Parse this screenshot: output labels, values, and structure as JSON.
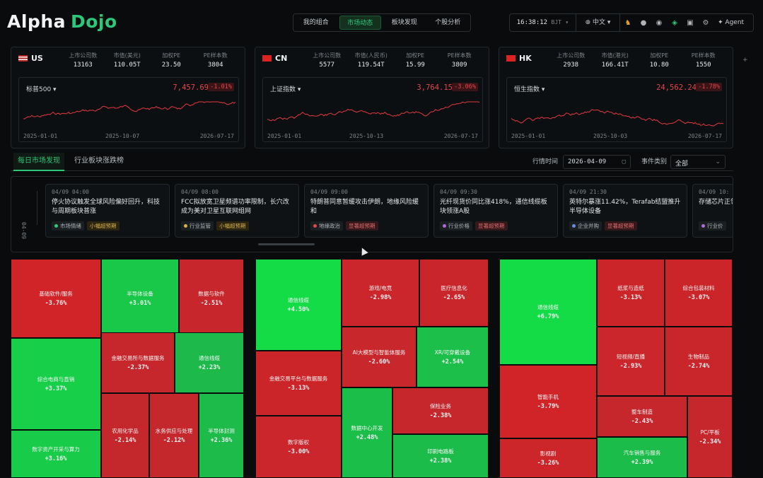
{
  "app": {
    "brand_a": "Alpha",
    "brand_b": "Dojo"
  },
  "nav": [
    {
      "label": "我的组合"
    },
    {
      "label": "市场动态",
      "active": true
    },
    {
      "label": "板块发现"
    },
    {
      "label": "个股分析"
    }
  ],
  "topright": {
    "time": "16:38:12",
    "tz": "BJT",
    "lang": "中文",
    "agent": "Agent",
    "icons": [
      "bell-icon",
      "github-icon",
      "discord-icon",
      "wechat-icon",
      "book-icon",
      "settings-icon"
    ]
  },
  "markets": [
    {
      "code": "US",
      "stats": [
        {
          "l": "上市公司数",
          "v": "13163"
        },
        {
          "l": "市值(美元)",
          "v": "110.05T"
        },
        {
          "l": "加权PE",
          "v": "23.50"
        },
        {
          "l": "PE样本数",
          "v": "3804"
        }
      ],
      "index": "标普500",
      "value": "7,457.69",
      "pct": "-1.01%",
      "dates": [
        "2025-01-01",
        "2025-10-07",
        "2026-07-17"
      ]
    },
    {
      "code": "CN",
      "stats": [
        {
          "l": "上市公司数",
          "v": "5577"
        },
        {
          "l": "市值(人民币)",
          "v": "119.54T"
        },
        {
          "l": "加权PE",
          "v": "15.99"
        },
        {
          "l": "PE样本数",
          "v": "3809"
        }
      ],
      "index": "上证指数",
      "value": "3,764.15",
      "pct": "-3.06%",
      "dates": [
        "2025-01-01",
        "2025-10-13",
        "2026-07-17"
      ]
    },
    {
      "code": "HK",
      "stats": [
        {
          "l": "上市公司数",
          "v": "2938"
        },
        {
          "l": "市值(港元)",
          "v": "166.41T"
        },
        {
          "l": "加权PE",
          "v": "10.80"
        },
        {
          "l": "PE样本数",
          "v": "1550"
        }
      ],
      "index": "恒生指数",
      "value": "24,562.24",
      "pct": "-1.78%",
      "dates": [
        "2025-01-01",
        "2025-10-03",
        "2026-07-17"
      ]
    }
  ],
  "tabs": {
    "daily": "每日市场发现",
    "sector": "行业板块涨跌榜"
  },
  "filters": {
    "date_label": "行情时间",
    "date": "2026-04-09",
    "type_label": "事件类别",
    "type": "全部"
  },
  "timeline": {
    "date": "04-09",
    "cards": [
      {
        "time": "04/09 04:00",
        "title": "停火协议触发全球风险偏好回升，科技与周期板块普涨",
        "tags": [
          {
            "t": "市场情绪",
            "c": "#2dc77a"
          },
          {
            "t": "小幅超预期",
            "k": "b"
          }
        ]
      },
      {
        "time": "04/09 08:00",
        "title": "FCC拟放宽卫星频谱功率限制，长穴改成为美对卫星互联网组网",
        "tags": [
          {
            "t": "行业监管",
            "c": "#d7b24a"
          },
          {
            "t": "小幅超预期",
            "k": "b"
          }
        ]
      },
      {
        "time": "04/09 09:00",
        "title": "特朗普同意暂缓攻击伊朗，地缘风险缓和",
        "tags": [
          {
            "t": "地缘政治",
            "c": "#e5444a"
          },
          {
            "t": "显著超预期",
            "k": "r"
          }
        ]
      },
      {
        "time": "04/09 09:30",
        "title": "光纤现货价同比涨418%，通信线缆板块领涨A股",
        "tags": [
          {
            "t": "行业价格",
            "c": "#b06be0"
          },
          {
            "t": "显著超预期",
            "k": "r"
          }
        ]
      },
      {
        "time": "04/09 21:30",
        "title": "英特尔暴涨11.42%，Terafab结盟推升半导体设备",
        "tags": [
          {
            "t": "企业并购",
            "c": "#6b8de0"
          },
          {
            "t": "显著超预期",
            "k": "r"
          }
        ]
      },
      {
        "time": "04/09 10:",
        "title": "存储芯片正领跌港股",
        "tags": [
          {
            "t": "行业价",
            "c": "#b06be0"
          }
        ]
      }
    ]
  },
  "heatmaps": {
    "us": [
      {
        "n": "基础软件/服务",
        "p": "-3.76%"
      },
      {
        "n": "半导体设备",
        "p": "+3.01%"
      },
      {
        "n": "数据与软件",
        "p": "-2.51%"
      },
      {
        "n": "综合电商与直销",
        "p": "+3.37%"
      },
      {
        "n": "金融交易所与数据服务",
        "p": "-2.37%"
      },
      {
        "n": "通信线缆",
        "p": "+2.23%"
      },
      {
        "n": "数字资产开采与算力",
        "p": "+3.16%"
      },
      {
        "n": "农用化学品",
        "p": "-2.14%"
      },
      {
        "n": "水务供应与处理",
        "p": "-2.12%"
      },
      {
        "n": "半导体封测",
        "p": "+2.36%"
      }
    ],
    "cn": [
      {
        "n": "通信线缆",
        "p": "+4.50%"
      },
      {
        "n": "游戏/电竞",
        "p": "-2.98%"
      },
      {
        "n": "医疗信息化",
        "p": "-2.65%"
      },
      {
        "n": "AI大模型与智能体服务",
        "p": "-2.60%"
      },
      {
        "n": "XR/可穿戴设备",
        "p": "+2.54%"
      },
      {
        "n": "金融交易平台与数据服务",
        "p": "-3.13%"
      },
      {
        "n": "数据中心开发",
        "p": "+2.48%"
      },
      {
        "n": "保险业务",
        "p": "-2.38%"
      },
      {
        "n": "数字版权",
        "p": "-3.00%"
      },
      {
        "n": "印刷电路板",
        "p": "+2.38%"
      }
    ],
    "hk": [
      {
        "n": "通信线缆",
        "p": "+6.79%"
      },
      {
        "n": "纸浆与造纸",
        "p": "-3.13%"
      },
      {
        "n": "综合包装材料",
        "p": "-3.07%"
      },
      {
        "n": "短视频/直播",
        "p": "-2.93%"
      },
      {
        "n": "生物制品",
        "p": "-2.74%"
      },
      {
        "n": "智能手机",
        "p": "-3.79%"
      },
      {
        "n": "整车制造",
        "p": "-2.43%"
      },
      {
        "n": "影视剧",
        "p": "-3.26%"
      },
      {
        "n": "汽车销售与服务",
        "p": "+2.39%"
      },
      {
        "n": "PC/平板",
        "p": "-2.34%"
      }
    ]
  }
}
